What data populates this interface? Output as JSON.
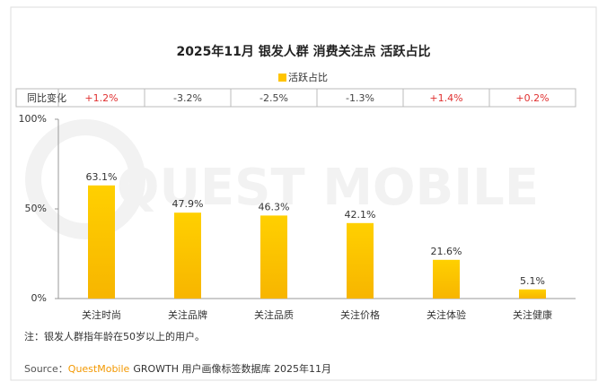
{
  "chart_data": {
    "type": "bar",
    "title": "2025年11月 银发人群 消费关注点 活跃占比",
    "categories": [
      "关注时尚",
      "关注品牌",
      "关注品质",
      "关注价格",
      "关注体验",
      "关注健康"
    ],
    "series": [
      {
        "name": "活跃占比",
        "color": "#ffc400",
        "values": [
          63.1,
          47.9,
          46.3,
          42.1,
          21.6,
          5.1
        ],
        "value_labels": [
          "63.1%",
          "47.9%",
          "46.3%",
          "42.1%",
          "21.6%",
          "5.1%"
        ]
      }
    ],
    "ylim": [
      0,
      100
    ],
    "yticks": [
      {
        "value": 0,
        "label": "0%"
      },
      {
        "value": 50,
        "label": "50%"
      },
      {
        "value": 100,
        "label": "100%"
      }
    ],
    "change_label": "同比变化",
    "change": [
      "+1.2%",
      "-3.2%",
      "-2.5%",
      "-1.3%",
      "+1.4%",
      "+0.2%"
    ],
    "watermark": "QUEST MOBILE",
    "note": "注：银发人群指年龄在50岁以上的用户。",
    "source": {
      "label": "Source：",
      "brand": "QuestMobile",
      "text": "GROWTH 用户画像标签数据库 2025年11月"
    }
  }
}
